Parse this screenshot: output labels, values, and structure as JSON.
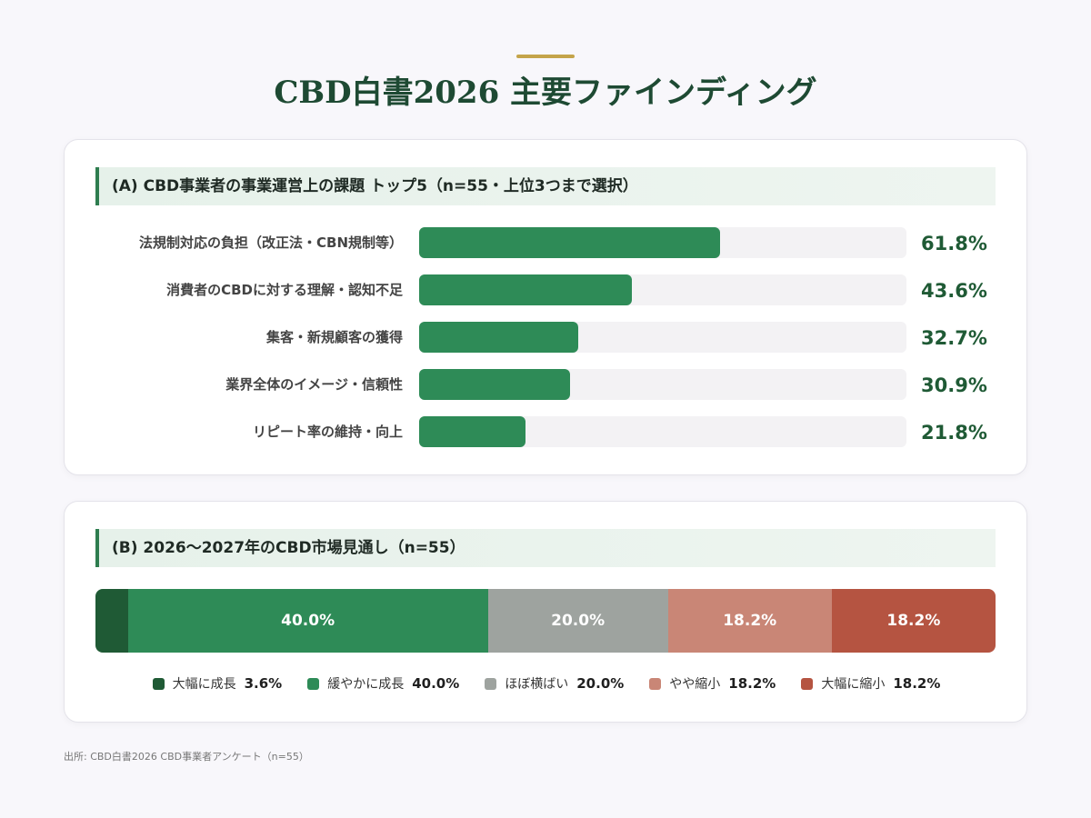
{
  "page": {
    "title": "CBD白書2026 主要ファインディング",
    "source": "出所: CBD白書2026 CBD事業者アンケート（n=55）"
  },
  "colors": {
    "accent": "#c4a44a",
    "title": "#1e4a33",
    "bar": "#2e8b57",
    "track": "#f3f2f4"
  },
  "chart_data": [
    {
      "type": "bar",
      "orientation": "horizontal",
      "title": "(A) CBD事業者の事業運営上の課題 トップ5（n=55・上位3つまで選択）",
      "categories": [
        "法規制対応の負担（改正法・CBN規制等）",
        "消費者のCBDに対する理解・認知不足",
        "集客・新規顧客の獲得",
        "業界全体のイメージ・信頼性",
        "リピート率の維持・向上"
      ],
      "values": [
        61.8,
        43.6,
        32.7,
        30.9,
        21.8
      ],
      "value_labels": [
        "61.8%",
        "43.6%",
        "32.7%",
        "30.9%",
        "21.8%"
      ],
      "xlim": [
        0,
        100
      ],
      "unit": "%",
      "grid": false
    },
    {
      "type": "bar",
      "orientation": "stacked-100",
      "title": "(B) 2026〜2027年のCBD市場見通し（n=55）",
      "series": [
        {
          "name": "大幅に成長",
          "value": 3.6,
          "value_label": "3.6%",
          "segment_label": "",
          "color": "#1f5a35"
        },
        {
          "name": "緩やかに成長",
          "value": 40.0,
          "value_label": "40.0%",
          "segment_label": "40.0%",
          "color": "#2e8b57"
        },
        {
          "name": "ほぼ横ばい",
          "value": 20.0,
          "value_label": "20.0%",
          "segment_label": "20.0%",
          "color": "#9ea39f"
        },
        {
          "name": "やや縮小",
          "value": 18.2,
          "value_label": "18.2%",
          "segment_label": "18.2%",
          "color": "#c98676"
        },
        {
          "name": "大幅に縮小",
          "value": 18.2,
          "value_label": "18.2%",
          "segment_label": "18.2%",
          "color": "#b55441"
        }
      ],
      "legend": "bottom-center"
    }
  ]
}
